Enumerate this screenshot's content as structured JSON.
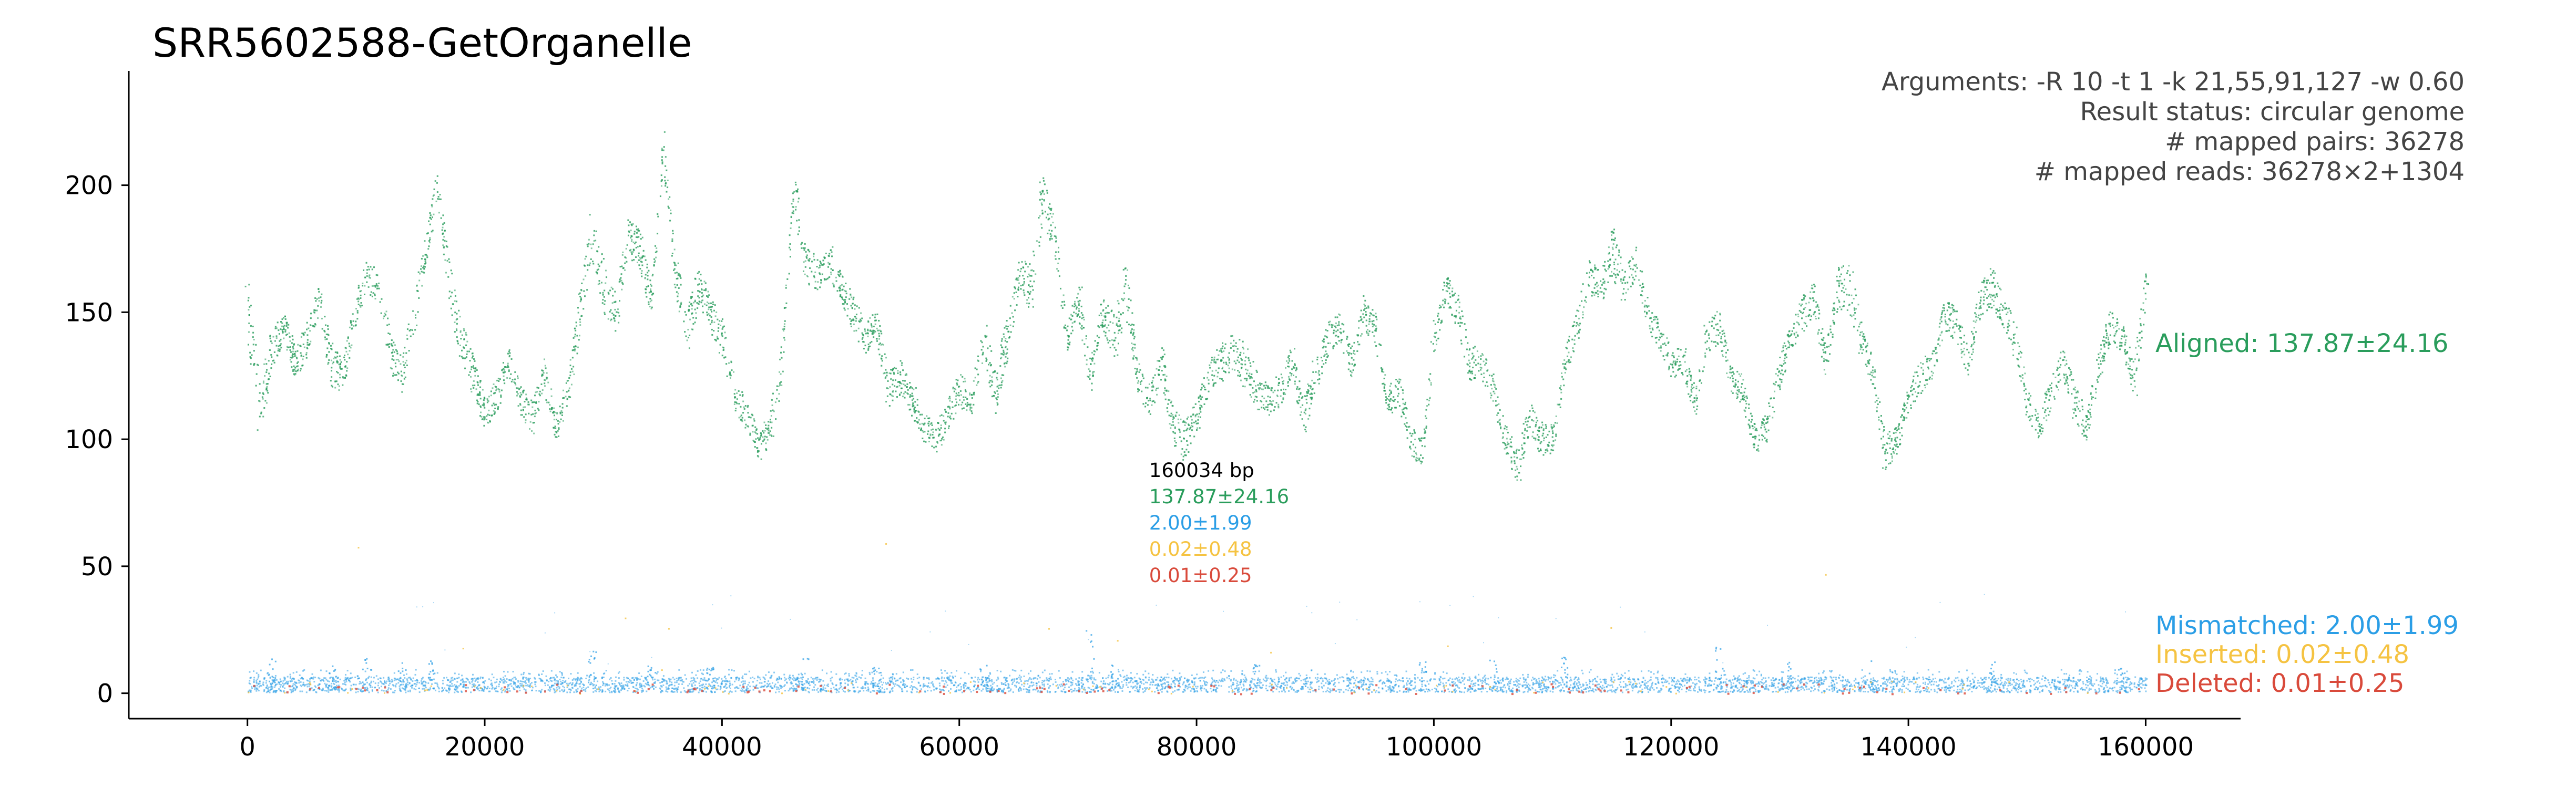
{
  "chart_data": {
    "type": "scatter",
    "title": "SRR5602588-GetOrganelle",
    "xlabel": "",
    "ylabel": "",
    "xlim": [
      -10000,
      168000
    ],
    "ylim": [
      -10,
      245
    ],
    "x_ticks": [
      0,
      20000,
      40000,
      60000,
      80000,
      100000,
      120000,
      140000,
      160000
    ],
    "x_tick_labels": [
      "0",
      "20000",
      "40000",
      "60000",
      "80000",
      "100000",
      "120000",
      "140000",
      "160000"
    ],
    "y_ticks": [
      0,
      50,
      100,
      150,
      200
    ],
    "y_tick_labels": [
      "0",
      "50",
      "100",
      "150",
      "200"
    ],
    "genome_length": 160034,
    "info_lines": [
      "Arguments: -R 10 -t 1 -k 21,55,91,127 -w 0.60",
      "Result status: circular genome",
      "# mapped pairs: 36278",
      "# mapped reads: 36278×2+1304"
    ],
    "series": [
      {
        "name": "Aligned",
        "label": "Aligned: 137.87±24.16",
        "color": "#2a9d5c",
        "mean": 137.87,
        "sd": 24.16,
        "x": [
          0,
          1000,
          2000,
          3000,
          4000,
          5000,
          6000,
          7000,
          8000,
          9000,
          10000,
          11000,
          12000,
          13000,
          14000,
          15000,
          16000,
          17000,
          18000,
          19000,
          20000,
          21000,
          22000,
          23000,
          24000,
          25000,
          26000,
          27000,
          28000,
          29000,
          30000,
          31000,
          32000,
          33000,
          34000,
          35000,
          36000,
          37000,
          38000,
          39000,
          40000,
          41000,
          42000,
          43000,
          44000,
          45000,
          46000,
          47000,
          48000,
          49000,
          50000,
          51000,
          52000,
          53000,
          54000,
          55000,
          56000,
          57000,
          58000,
          59000,
          60000,
          61000,
          62000,
          63000,
          64000,
          65000,
          66000,
          67000,
          68000,
          69000,
          70000,
          71000,
          72000,
          73000,
          74000,
          75000,
          76000,
          77000,
          78000,
          79000,
          80000,
          81000,
          82000,
          83000,
          84000,
          85000,
          86000,
          87000,
          88000,
          89000,
          90000,
          91000,
          92000,
          93000,
          94000,
          95000,
          96000,
          97000,
          98000,
          99000,
          100000,
          101000,
          102000,
          103000,
          104000,
          105000,
          106000,
          107000,
          108000,
          109000,
          110000,
          111000,
          112000,
          113000,
          114000,
          115000,
          116000,
          117000,
          118000,
          119000,
          120000,
          121000,
          122000,
          123000,
          124000,
          125000,
          126000,
          127000,
          128000,
          129000,
          130000,
          131000,
          132000,
          133000,
          134000,
          135000,
          136000,
          137000,
          138000,
          139000,
          140000,
          141000,
          142000,
          143000,
          144000,
          145000,
          146000,
          147000,
          148000,
          149000,
          150000,
          151000,
          152000,
          153000,
          154000,
          155000,
          156000,
          157000,
          158000,
          159000,
          160000
        ],
        "y": [
          150,
          112,
          135,
          145,
          130,
          140,
          155,
          130,
          125,
          150,
          165,
          160,
          135,
          125,
          150,
          175,
          200,
          160,
          140,
          125,
          110,
          118,
          130,
          115,
          108,
          125,
          105,
          120,
          150,
          180,
          160,
          150,
          180,
          175,
          155,
          215,
          165,
          145,
          160,
          150,
          140,
          118,
          110,
          98,
          105,
          130,
          200,
          170,
          165,
          170,
          160,
          150,
          140,
          145,
          120,
          125,
          115,
          105,
          100,
          110,
          120,
          115,
          140,
          120,
          140,
          165,
          160,
          195,
          180,
          140,
          155,
          125,
          150,
          140,
          160,
          125,
          115,
          130,
          105,
          100,
          110,
          125,
          130,
          135,
          130,
          120,
          115,
          120,
          130,
          110,
          125,
          140,
          145,
          130,
          150,
          145,
          115,
          120,
          100,
          95,
          140,
          160,
          150,
          130,
          130,
          120,
          100,
          90,
          110,
          100,
          100,
          130,
          145,
          165,
          160,
          175,
          160,
          170,
          150,
          140,
          130,
          130,
          115,
          140,
          145,
          125,
          120,
          100,
          105,
          125,
          140,
          150,
          155,
          130,
          160,
          160,
          140,
          125,
          95,
          100,
          115,
          125,
          130,
          150,
          145,
          130,
          155,
          160,
          150,
          140,
          115,
          105,
          120,
          130,
          115,
          105,
          130,
          145,
          140,
          125,
          160
        ],
        "band": [
          25,
          25,
          18,
          12,
          15,
          14,
          12,
          18,
          14,
          12,
          14,
          12,
          16,
          14,
          18,
          12,
          15,
          22,
          15,
          18,
          12,
          14,
          12,
          12,
          14,
          16,
          12,
          14,
          20,
          18,
          22,
          16,
          14,
          18,
          12,
          15,
          14,
          20,
          16,
          15,
          15,
          14,
          12,
          12,
          14,
          20,
          18,
          16,
          12,
          14,
          12,
          14,
          14,
          12,
          14,
          14,
          12,
          12,
          12,
          14,
          14,
          12,
          14,
          20,
          18,
          12,
          20,
          18,
          14,
          12,
          14,
          14,
          12,
          20,
          24,
          12,
          14,
          14,
          14,
          16,
          12,
          14,
          16,
          14,
          18,
          16,
          12,
          14,
          12,
          16,
          14,
          14,
          12,
          12,
          14,
          14,
          12,
          14,
          12,
          12,
          14,
          12,
          14,
          14,
          14,
          14,
          12,
          14,
          14,
          14,
          12,
          12,
          14,
          14,
          14,
          22,
          12,
          14,
          12,
          12,
          12,
          12,
          12,
          12,
          14,
          12,
          14,
          12,
          12,
          14,
          12,
          14,
          14,
          12,
          16,
          20,
          14,
          12,
          14,
          12,
          14,
          14,
          12,
          14,
          14,
          12,
          14,
          16,
          12,
          14,
          12,
          12,
          14,
          12,
          14,
          14,
          12,
          14,
          12,
          16,
          16
        ]
      },
      {
        "name": "Mismatched",
        "label": "Mismatched: 2.00±1.99",
        "color": "#2b9ee6",
        "mean": 2.0,
        "sd": 1.99,
        "peaks": [
          {
            "x": 2000,
            "y": 15
          },
          {
            "x": 7000,
            "y": 12
          },
          {
            "x": 10000,
            "y": 14
          },
          {
            "x": 13000,
            "y": 12
          },
          {
            "x": 15500,
            "y": 13
          },
          {
            "x": 29000,
            "y": 17
          },
          {
            "x": 34000,
            "y": 11
          },
          {
            "x": 39000,
            "y": 10
          },
          {
            "x": 47000,
            "y": 14
          },
          {
            "x": 53000,
            "y": 10
          },
          {
            "x": 62000,
            "y": 11
          },
          {
            "x": 71000,
            "y": 26
          },
          {
            "x": 73000,
            "y": 12
          },
          {
            "x": 85000,
            "y": 11
          },
          {
            "x": 99000,
            "y": 12
          },
          {
            "x": 105000,
            "y": 13
          },
          {
            "x": 111000,
            "y": 14
          },
          {
            "x": 124000,
            "y": 18
          },
          {
            "x": 130000,
            "y": 12
          },
          {
            "x": 137000,
            "y": 13
          },
          {
            "x": 147000,
            "y": 12
          },
          {
            "x": 158000,
            "y": 10
          }
        ]
      },
      {
        "name": "Inserted",
        "label": "Inserted: 0.02±0.48",
        "color": "#f5c342",
        "mean": 0.02,
        "sd": 0.48
      },
      {
        "name": "Deleted",
        "label": "Deleted: 0.01±0.25",
        "color": "#d94a3b",
        "mean": 0.01,
        "sd": 0.25
      }
    ],
    "center_annotation": {
      "x": 76000,
      "lines": [
        {
          "text": "160034 bp",
          "color": "#000000"
        },
        {
          "text": "137.87±24.16",
          "color": "#2a9d5c"
        },
        {
          "text": "2.00±1.99",
          "color": "#2b9ee6"
        },
        {
          "text": "0.02±0.48",
          "color": "#f5c342"
        },
        {
          "text": "0.01±0.25",
          "color": "#d94a3b"
        }
      ]
    }
  }
}
